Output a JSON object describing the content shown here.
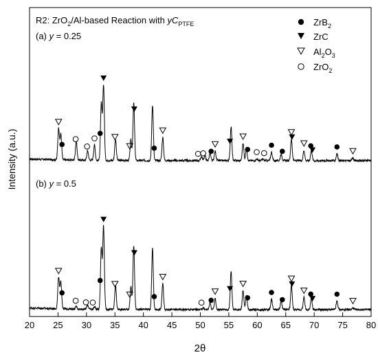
{
  "chart_data": {
    "type": "line",
    "x_axis": {
      "label": "2θ",
      "range": [
        20,
        80
      ],
      "ticks": [
        20,
        25,
        30,
        35,
        40,
        45,
        50,
        55,
        60,
        65,
        70,
        75,
        80
      ]
    },
    "y_axis": {
      "label": "Intensity (a.u.)",
      "ticks_shown": false
    },
    "title": {
      "prefix": "R2: ZrO",
      "sub1": "2",
      "middle": "/Al-based Reaction with ",
      "italic_y": "y",
      "C": "C",
      "sub2": "PTFE"
    },
    "panels": [
      {
        "label_prefix": "(a) ",
        "label_var": "y",
        "label_value": " = 0.25",
        "baseline": 0.62,
        "peak_scale": 1.0,
        "peaks": [
          {
            "x": 25.1,
            "h": 0.37,
            "phase": "Al2O3"
          },
          {
            "x": 25.5,
            "h": 0.3,
            "phase": "ZrB2"
          },
          {
            "x": 28.2,
            "h": 0.22,
            "phase": "ZrO2"
          },
          {
            "x": 30.2,
            "h": 0.11,
            "phase": "ZrO2"
          },
          {
            "x": 31.4,
            "h": 0.18,
            "phase": "ZrO2"
          },
          {
            "x": 32.6,
            "h": 0.66,
            "phase": "ZrB2"
          },
          {
            "x": 33.0,
            "h": 0.88,
            "phase": "ZrC"
          },
          {
            "x": 35.1,
            "h": 0.25,
            "phase": "Al2O3"
          },
          {
            "x": 37.8,
            "h": 0.24,
            "phase": "Al2O3"
          },
          {
            "x": 38.3,
            "h": 0.67,
            "phase": "ZrC"
          },
          {
            "x": 41.6,
            "h": 0.65,
            "phase": "ZrB2"
          },
          {
            "x": 43.4,
            "h": 0.27,
            "phase": "Al2O3"
          },
          {
            "x": 50.2,
            "h": 0.05,
            "phase": "ZrO2"
          },
          {
            "x": 50.8,
            "h": 0.06,
            "phase": "ZrO2"
          },
          {
            "x": 51.7,
            "h": 0.08,
            "phase": "ZrB2"
          },
          {
            "x": 52.6,
            "h": 0.11,
            "phase": "Al2O3"
          },
          {
            "x": 55.4,
            "h": 0.4,
            "phase": "ZrC"
          },
          {
            "x": 57.5,
            "h": 0.2,
            "phase": "Al2O3"
          },
          {
            "x": 58.1,
            "h": 0.14,
            "phase": "ZrB2"
          },
          {
            "x": 59.9,
            "h": 0.02,
            "phase": "ZrO2"
          },
          {
            "x": 61.0,
            "h": 0.02,
            "phase": "ZrO2"
          },
          {
            "x": 62.5,
            "h": 0.1,
            "phase": "ZrB2"
          },
          {
            "x": 64.2,
            "h": 0.08,
            "phase": "ZrB2"
          },
          {
            "x": 66.0,
            "h": 0.25,
            "phase": "ZrC"
          },
          {
            "x": 68.2,
            "h": 0.12,
            "phase": "Al2O3"
          },
          {
            "x": 69.5,
            "h": 0.12,
            "phase": "ZrB2"
          },
          {
            "x": 74.0,
            "h": 0.08,
            "phase": "ZrB2"
          },
          {
            "x": 76.8,
            "h": 0.03,
            "phase": "Al2O3"
          }
        ],
        "markers": [
          {
            "x": 25.1,
            "sym": "tri_open"
          },
          {
            "x": 25.7,
            "sym": "dot"
          },
          {
            "x": 28.1,
            "sym": "circle_open"
          },
          {
            "x": 30.1,
            "sym": "circle_open"
          },
          {
            "x": 31.4,
            "sym": "circle_open"
          },
          {
            "x": 32.4,
            "sym": "dot"
          },
          {
            "x": 33.0,
            "sym": "tri_fill"
          },
          {
            "x": 35.0,
            "sym": "tri_open"
          },
          {
            "x": 37.6,
            "sym": "tri_open"
          },
          {
            "x": 38.4,
            "sym": "tri_fill"
          },
          {
            "x": 41.9,
            "sym": "dot"
          },
          {
            "x": 43.4,
            "sym": "tri_open"
          },
          {
            "x": 49.6,
            "sym": "circle_open"
          },
          {
            "x": 50.5,
            "sym": "circle_open"
          },
          {
            "x": 51.9,
            "sym": "dot"
          },
          {
            "x": 52.6,
            "sym": "tri_open"
          },
          {
            "x": 55.2,
            "sym": "tri_fill"
          },
          {
            "x": 57.5,
            "sym": "tri_open"
          },
          {
            "x": 58.3,
            "sym": "dot"
          },
          {
            "x": 59.9,
            "sym": "circle_open"
          },
          {
            "x": 61.2,
            "sym": "circle_open"
          },
          {
            "x": 62.5,
            "sym": "dot"
          },
          {
            "x": 64.4,
            "sym": "dot"
          },
          {
            "x": 66.0,
            "sym": "tri_open"
          },
          {
            "x": 66.1,
            "sym": "tri_fill"
          },
          {
            "x": 68.2,
            "sym": "tri_open"
          },
          {
            "x": 69.4,
            "sym": "dot"
          },
          {
            "x": 69.7,
            "sym": "tri_fill"
          },
          {
            "x": 74.0,
            "sym": "dot"
          },
          {
            "x": 76.8,
            "sym": "tri_open"
          }
        ]
      },
      {
        "label_prefix": "(b) ",
        "label_var": "y",
        "label_value": " = 0.5",
        "baseline": 0.1,
        "peak_scale": 1.0,
        "peaks": [
          {
            "x": 25.1,
            "h": 0.37,
            "phase": "Al2O3"
          },
          {
            "x": 25.5,
            "h": 0.32,
            "phase": "ZrB2"
          },
          {
            "x": 28.2,
            "h": 0.03,
            "phase": "ZrO2"
          },
          {
            "x": 30.2,
            "h": 0.05,
            "phase": "ZrO2"
          },
          {
            "x": 31.4,
            "h": 0.03,
            "phase": "ZrO2"
          },
          {
            "x": 32.6,
            "h": 0.72,
            "phase": "ZrB2"
          },
          {
            "x": 33.0,
            "h": 0.97,
            "phase": "ZrC"
          },
          {
            "x": 35.1,
            "h": 0.28,
            "phase": "Al2O3"
          },
          {
            "x": 37.8,
            "h": 0.26,
            "phase": "Al2O3"
          },
          {
            "x": 38.3,
            "h": 0.75,
            "phase": "ZrC"
          },
          {
            "x": 41.6,
            "h": 0.71,
            "phase": "ZrB2"
          },
          {
            "x": 43.4,
            "h": 0.3,
            "phase": "Al2O3"
          },
          {
            "x": 50.5,
            "h": 0.02,
            "phase": "ZrO2"
          },
          {
            "x": 51.7,
            "h": 0.08,
            "phase": "ZrB2"
          },
          {
            "x": 52.6,
            "h": 0.13,
            "phase": "Al2O3"
          },
          {
            "x": 55.4,
            "h": 0.45,
            "phase": "ZrC"
          },
          {
            "x": 57.5,
            "h": 0.22,
            "phase": "Al2O3"
          },
          {
            "x": 58.1,
            "h": 0.16,
            "phase": "ZrB2"
          },
          {
            "x": 62.5,
            "h": 0.12,
            "phase": "ZrB2"
          },
          {
            "x": 64.2,
            "h": 0.1,
            "phase": "ZrB2"
          },
          {
            "x": 66.0,
            "h": 0.28,
            "phase": "ZrC"
          },
          {
            "x": 68.2,
            "h": 0.14,
            "phase": "Al2O3"
          },
          {
            "x": 69.5,
            "h": 0.13,
            "phase": "ZrB2"
          },
          {
            "x": 74.0,
            "h": 0.1,
            "phase": "ZrB2"
          },
          {
            "x": 76.8,
            "h": 0.02,
            "phase": "Al2O3"
          }
        ],
        "markers": [
          {
            "x": 25.1,
            "sym": "tri_open"
          },
          {
            "x": 25.7,
            "sym": "dot"
          },
          {
            "x": 28.1,
            "sym": "circle_open"
          },
          {
            "x": 29.9,
            "sym": "circle_open"
          },
          {
            "x": 31.1,
            "sym": "circle_open"
          },
          {
            "x": 32.4,
            "sym": "dot"
          },
          {
            "x": 33.0,
            "sym": "tri_fill"
          },
          {
            "x": 35.0,
            "sym": "tri_open"
          },
          {
            "x": 37.6,
            "sym": "tri_open"
          },
          {
            "x": 38.4,
            "sym": "tri_fill"
          },
          {
            "x": 41.9,
            "sym": "dot"
          },
          {
            "x": 43.4,
            "sym": "tri_open"
          },
          {
            "x": 50.2,
            "sym": "circle_open"
          },
          {
            "x": 51.9,
            "sym": "dot"
          },
          {
            "x": 52.6,
            "sym": "tri_open"
          },
          {
            "x": 55.2,
            "sym": "tri_fill"
          },
          {
            "x": 57.5,
            "sym": "tri_open"
          },
          {
            "x": 58.3,
            "sym": "dot"
          },
          {
            "x": 62.5,
            "sym": "dot"
          },
          {
            "x": 64.4,
            "sym": "dot"
          },
          {
            "x": 66.0,
            "sym": "tri_open"
          },
          {
            "x": 66.1,
            "sym": "tri_fill"
          },
          {
            "x": 68.2,
            "sym": "tri_open"
          },
          {
            "x": 69.4,
            "sym": "dot"
          },
          {
            "x": 69.7,
            "sym": "tri_fill"
          },
          {
            "x": 74.0,
            "sym": "dot"
          },
          {
            "x": 76.8,
            "sym": "tri_open"
          }
        ]
      }
    ],
    "legend": {
      "placement": "top-right",
      "entries": [
        {
          "sym": "dot",
          "text": "ZrB",
          "sub": "2"
        },
        {
          "sym": "tri_fill",
          "text": "ZrC",
          "sub": ""
        },
        {
          "sym": "tri_open",
          "text": "Al",
          "sub": "2",
          "text2": "O",
          "sub2": "3"
        },
        {
          "sym": "circle_open",
          "text": "ZrO",
          "sub": "2"
        }
      ]
    },
    "colors": {
      "line": "#000000",
      "background": "#ffffff"
    }
  }
}
